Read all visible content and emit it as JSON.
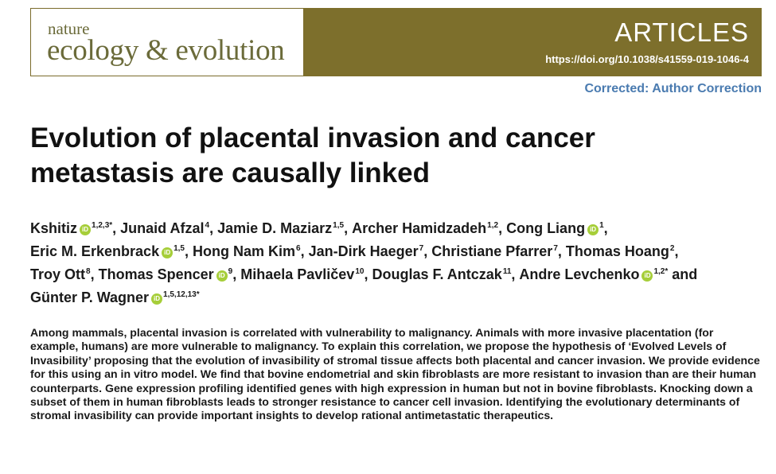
{
  "header": {
    "journal_small": "nature",
    "journal_big": "ecology & evolution",
    "section": "ARTICLES",
    "doi": "https://doi.org/10.1038/s41559-019-1046-4"
  },
  "correction": "Corrected: Author Correction",
  "title_line1": "Evolution of placental invasion and cancer",
  "title_line2": "metastasis are causally linked",
  "authors": [
    {
      "name": "Kshitiz",
      "sup": "1,2,3*",
      "orcid": true,
      "sep": ", "
    },
    {
      "name": "Junaid Afzal",
      "sup": "4",
      "orcid": false,
      "sep": ", "
    },
    {
      "name": "Jamie D. Maziarz",
      "sup": "1,5",
      "orcid": false,
      "sep": ", "
    },
    {
      "name": "Archer Hamidzadeh",
      "sup": "1,2",
      "orcid": false,
      "sep": ", "
    },
    {
      "name": "Cong Liang",
      "sup": "1",
      "orcid": true,
      "sep": ","
    },
    {
      "name": "Eric M. Erkenbrack",
      "sup": "1,5",
      "orcid": true,
      "sep": ", "
    },
    {
      "name": "Hong Nam Kim",
      "sup": "6",
      "orcid": false,
      "sep": ", "
    },
    {
      "name": "Jan-Dirk Haeger",
      "sup": "7",
      "orcid": false,
      "sep": ", "
    },
    {
      "name": "Christiane Pfarrer",
      "sup": "7",
      "orcid": false,
      "sep": ", "
    },
    {
      "name": "Thomas Hoang",
      "sup": "2",
      "orcid": false,
      "sep": ","
    },
    {
      "name": "Troy Ott",
      "sup": "8",
      "orcid": false,
      "sep": ", "
    },
    {
      "name": "Thomas Spencer",
      "sup": "9",
      "orcid": true,
      "sep": ", "
    },
    {
      "name": "Mihaela Pavličev",
      "sup": "10",
      "orcid": false,
      "sep": ", "
    },
    {
      "name": "Douglas F. Antczak",
      "sup": "11",
      "orcid": false,
      "sep": ", "
    },
    {
      "name": "Andre Levchenko",
      "sup": "1,2*",
      "orcid": true,
      "sep": " and"
    },
    {
      "name": "Günter P. Wagner",
      "sup": "1,5,12,13*",
      "orcid": true,
      "sep": ""
    }
  ],
  "orcid_label": "iD",
  "abstract": "Among mammals, placental invasion is correlated with vulnerability to malignancy. Animals with more invasive placentation (for example, humans) are more vulnerable to malignancy. To explain this correlation, we propose the hypothesis of ‘Evolved Levels of Invasibility’ proposing that the evolution of invasibility of stromal tissue affects both placental and cancer invasion. We provide evidence for this using an in vitro model. We find that bovine endometrial and skin fibroblasts are more resistant to invasion than are their human counterparts. Gene expression profiling identified genes with high expression in human but not in bovine fibroblasts. Knocking down a subset of them in human fibroblasts leads to stronger resistance to cancer cell invasion. Identifying the evolutionary determinants of stromal invasibility can provide important insights to develop rational antimetastatic therapeutics.",
  "colors": {
    "banner": "#7d6f2c",
    "journal_text": "#6b6b3a",
    "link": "#4a7bb0",
    "orcid": "#a6ce39"
  }
}
